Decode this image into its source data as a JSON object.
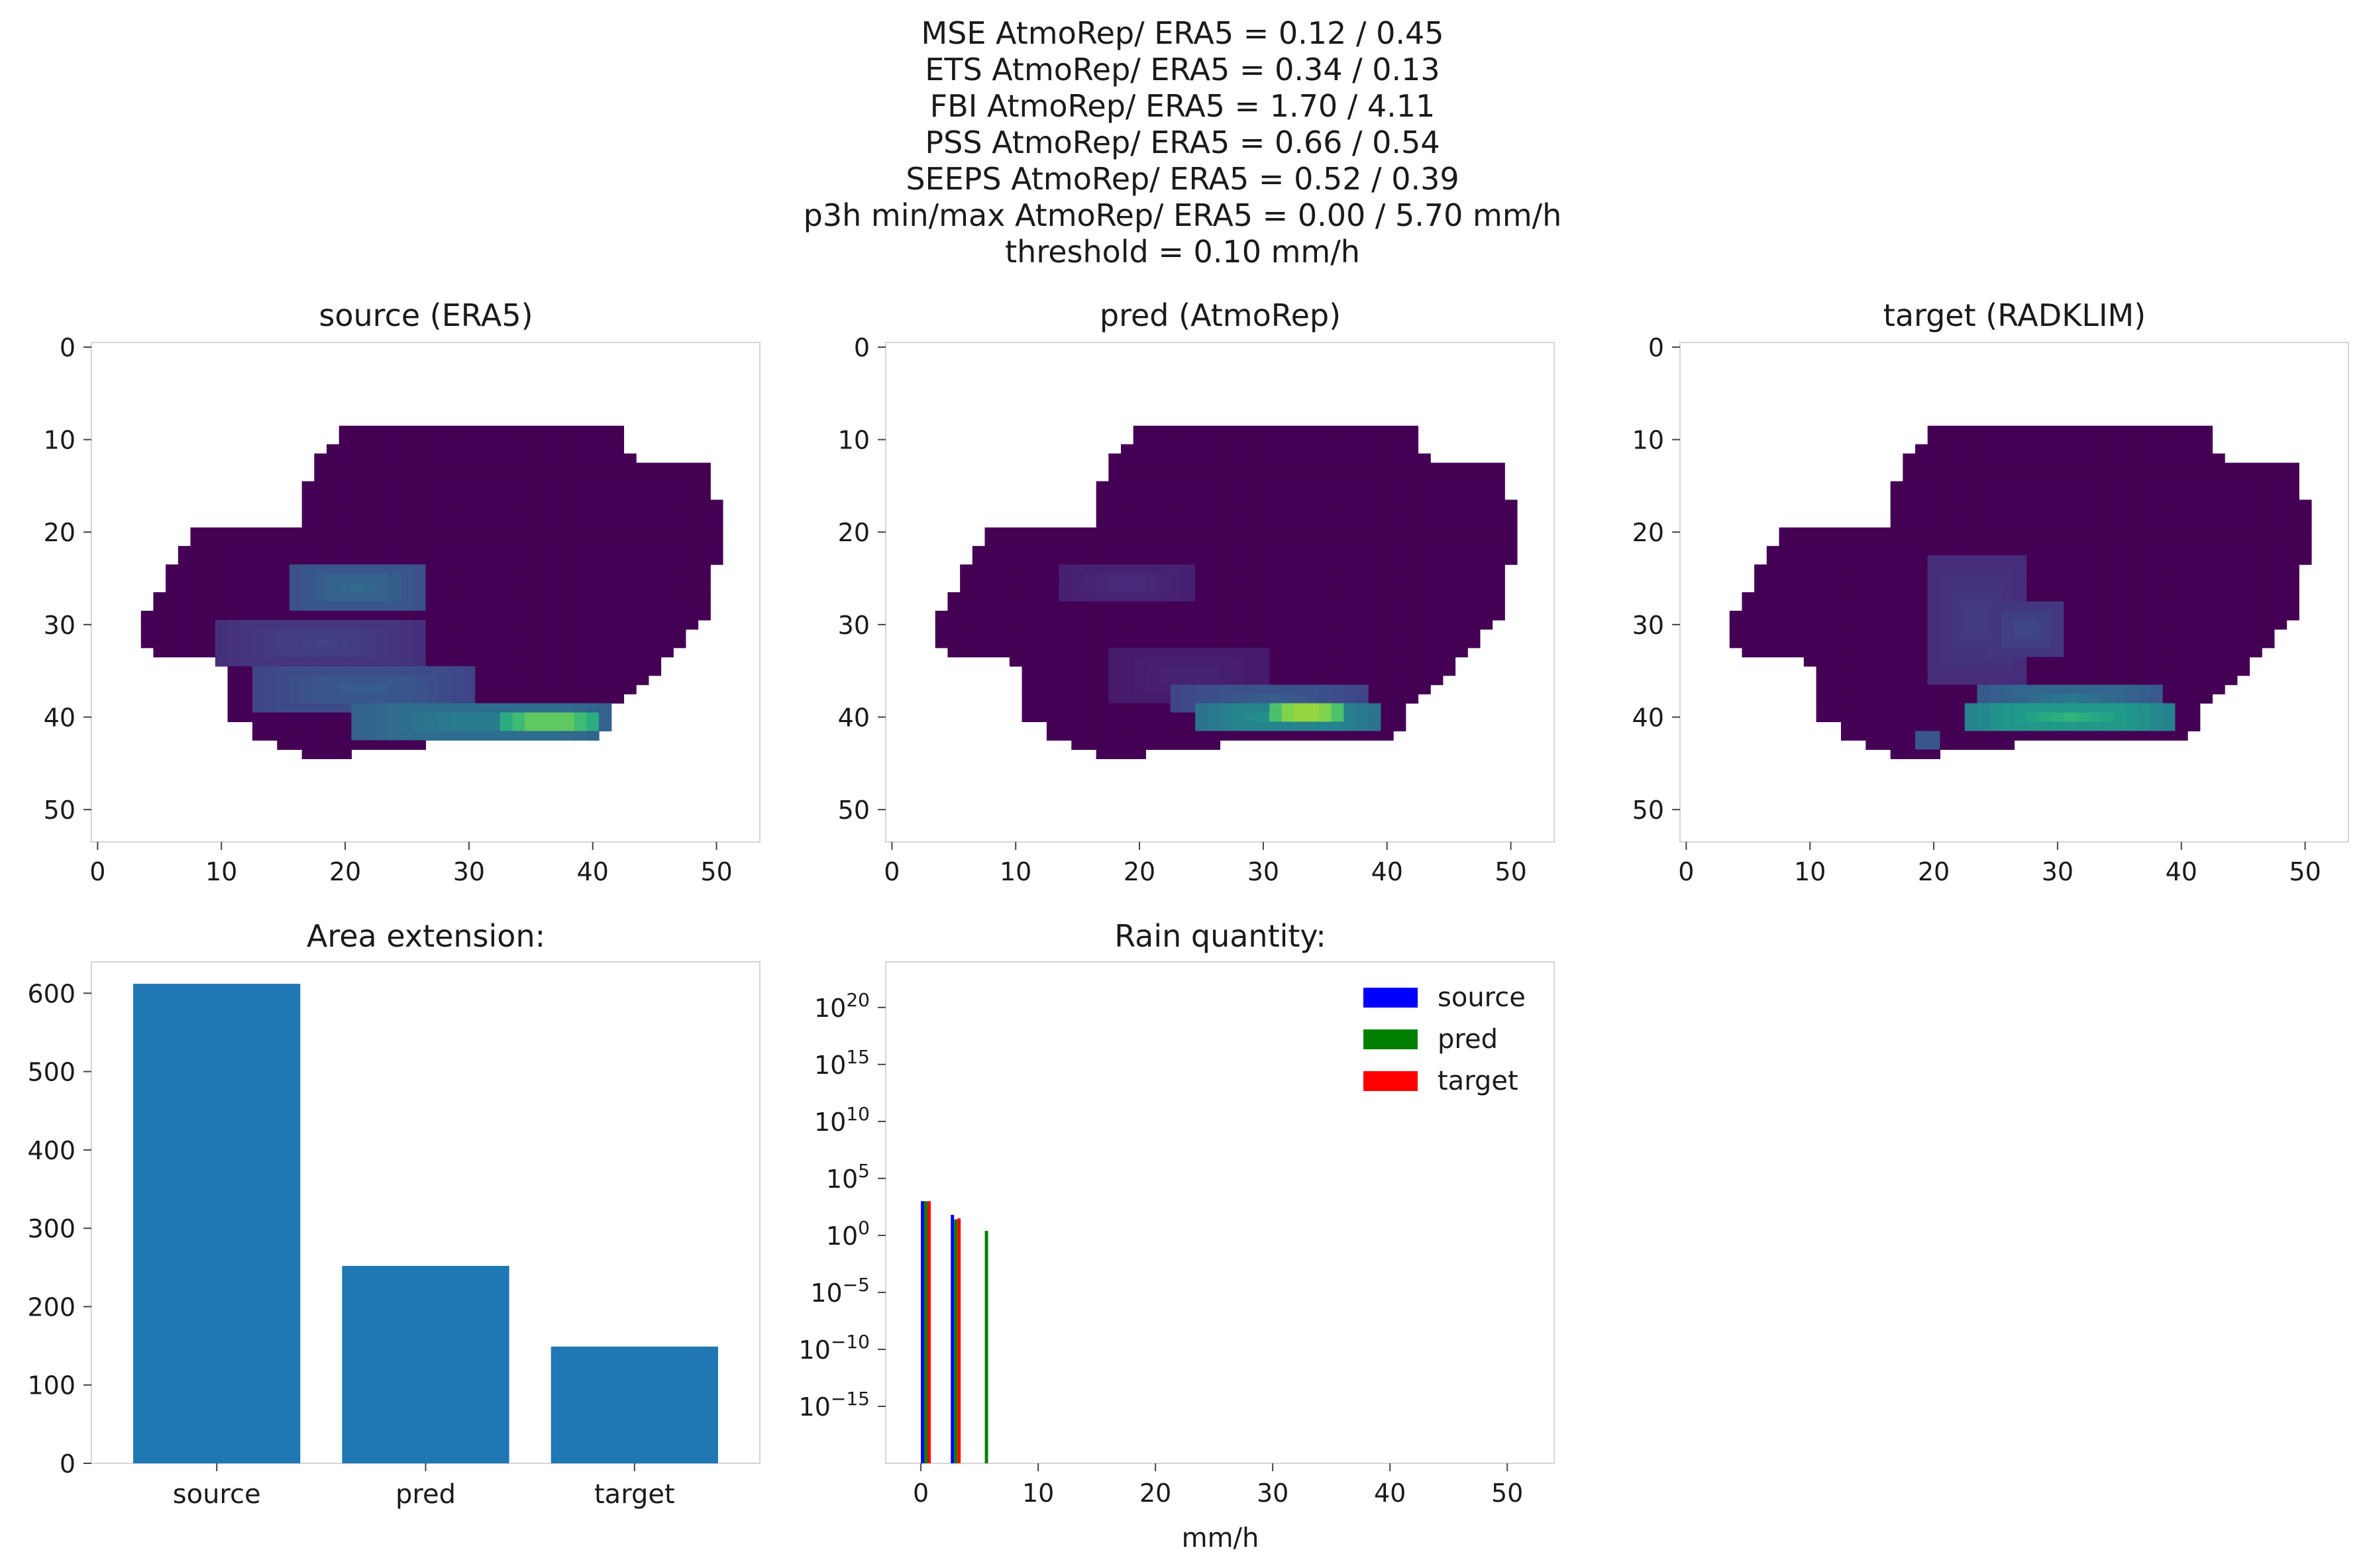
{
  "suptitle": [
    "MSE AtmoRep/ ERA5 = 0.12 / 0.45",
    "ETS AtmoRep/ ERA5 = 0.34 / 0.13",
    "FBI AtmoRep/ ERA5 = 1.70 / 4.11",
    "PSS AtmoRep/ ERA5 = 0.66 / 0.54",
    "SEEPS AtmoRep/ ERA5 = 0.52 / 0.39",
    "p3h min/max AtmoRep/ ERA5 = 0.00 / 5.70 mm/h",
    "threshold = 0.10 mm/h"
  ],
  "chart_data": [
    {
      "type": "heatmap",
      "title": "source (ERA5)",
      "colormap": "viridis",
      "xlim": [
        -0.5,
        53.5
      ],
      "ylim": [
        53.5,
        -0.5
      ],
      "xticks": [
        "0",
        "10",
        "20",
        "30",
        "40",
        "50"
      ],
      "yticks": [
        "0",
        "10",
        "20",
        "30",
        "40",
        "50"
      ],
      "rain_bands": [
        {
          "row_start": 24,
          "row_end": 28,
          "col_start": 16,
          "col_end": 26,
          "intensity": 0.35
        },
        {
          "row_start": 30,
          "row_end": 34,
          "col_start": 10,
          "col_end": 26,
          "intensity": 0.2
        },
        {
          "row_start": 35,
          "row_end": 39,
          "col_start": 13,
          "col_end": 30,
          "intensity": 0.3
        },
        {
          "row_start": 39,
          "row_end": 42,
          "col_start": 21,
          "col_end": 41,
          "intensity": 0.45
        },
        {
          "row_start": 40,
          "row_end": 41,
          "col_start": 33,
          "col_end": 40,
          "intensity": 0.85
        }
      ]
    },
    {
      "type": "heatmap",
      "title": "pred (AtmoRep)",
      "colormap": "viridis",
      "xlim": [
        -0.5,
        53.5
      ],
      "ylim": [
        53.5,
        -0.5
      ],
      "xticks": [
        "0",
        "10",
        "20",
        "30",
        "40",
        "50"
      ],
      "yticks": [
        "0",
        "10",
        "20",
        "30",
        "40",
        "50"
      ],
      "rain_bands": [
        {
          "row_start": 24,
          "row_end": 27,
          "col_start": 14,
          "col_end": 24,
          "intensity": 0.12
        },
        {
          "row_start": 33,
          "row_end": 38,
          "col_start": 18,
          "col_end": 30,
          "intensity": 0.1
        },
        {
          "row_start": 37,
          "row_end": 39,
          "col_start": 23,
          "col_end": 38,
          "intensity": 0.3
        },
        {
          "row_start": 39,
          "row_end": 41,
          "col_start": 25,
          "col_end": 39,
          "intensity": 0.55
        },
        {
          "row_start": 39,
          "row_end": 40,
          "col_start": 31,
          "col_end": 36,
          "intensity": 0.95
        }
      ]
    },
    {
      "type": "heatmap",
      "title": "target (RADKLIM)",
      "colormap": "viridis",
      "xlim": [
        -0.5,
        53.5
      ],
      "ylim": [
        53.5,
        -0.5
      ],
      "xticks": [
        "0",
        "10",
        "20",
        "30",
        "40",
        "50"
      ],
      "yticks": [
        "0",
        "10",
        "20",
        "30",
        "40",
        "50"
      ],
      "rain_bands": [
        {
          "row_start": 23,
          "row_end": 36,
          "col_start": 20,
          "col_end": 27,
          "intensity": 0.18
        },
        {
          "row_start": 28,
          "row_end": 33,
          "col_start": 25,
          "col_end": 30,
          "intensity": 0.22
        },
        {
          "row_start": 37,
          "row_end": 39,
          "col_start": 24,
          "col_end": 38,
          "intensity": 0.4
        },
        {
          "row_start": 39,
          "row_end": 41,
          "col_start": 23,
          "col_end": 39,
          "intensity": 0.65
        },
        {
          "row_start": 42,
          "row_end": 43,
          "col_start": 19,
          "col_end": 20,
          "intensity": 0.3
        }
      ]
    },
    {
      "type": "bar",
      "title": "Area extension:",
      "categories": [
        "source",
        "pred",
        "target"
      ],
      "values": [
        612,
        252,
        149
      ],
      "ylim": [
        0,
        640
      ],
      "yticks": [
        "0",
        "100",
        "200",
        "300",
        "400",
        "500",
        "600"
      ],
      "color": "#1f77b4"
    },
    {
      "type": "bar",
      "title": "Rain quantity:",
      "xlabel": "mm/h",
      "yscale": "log",
      "xlim": [
        -3,
        54
      ],
      "ylim_exp": [
        -20,
        24
      ],
      "xticks": [
        "0",
        "10",
        "20",
        "30",
        "40",
        "50"
      ],
      "ytick_exponents": [
        "20",
        "15",
        "10",
        "5",
        "0",
        "−5",
        "−10",
        "−15"
      ],
      "legend_position": "upper right",
      "series": [
        {
          "name": "source",
          "color": "#0000ff",
          "bins": [
            {
              "x0": 0.0,
              "width": 0.28,
              "log10": 3.0
            },
            {
              "x0": 2.55,
              "width": 0.28,
              "log10": 1.8
            }
          ]
        },
        {
          "name": "pred",
          "color": "#008000",
          "bins": [
            {
              "x0": 0.28,
              "width": 0.28,
              "log10": 3.0
            },
            {
              "x0": 2.83,
              "width": 0.28,
              "log10": 1.4
            },
            {
              "x0": 5.45,
              "width": 0.28,
              "log10": 0.4
            }
          ]
        },
        {
          "name": "target",
          "color": "#ff0000",
          "bins": [
            {
              "x0": 0.56,
              "width": 0.28,
              "log10": 3.0
            },
            {
              "x0": 3.11,
              "width": 0.28,
              "log10": 1.5
            }
          ]
        }
      ]
    }
  ]
}
